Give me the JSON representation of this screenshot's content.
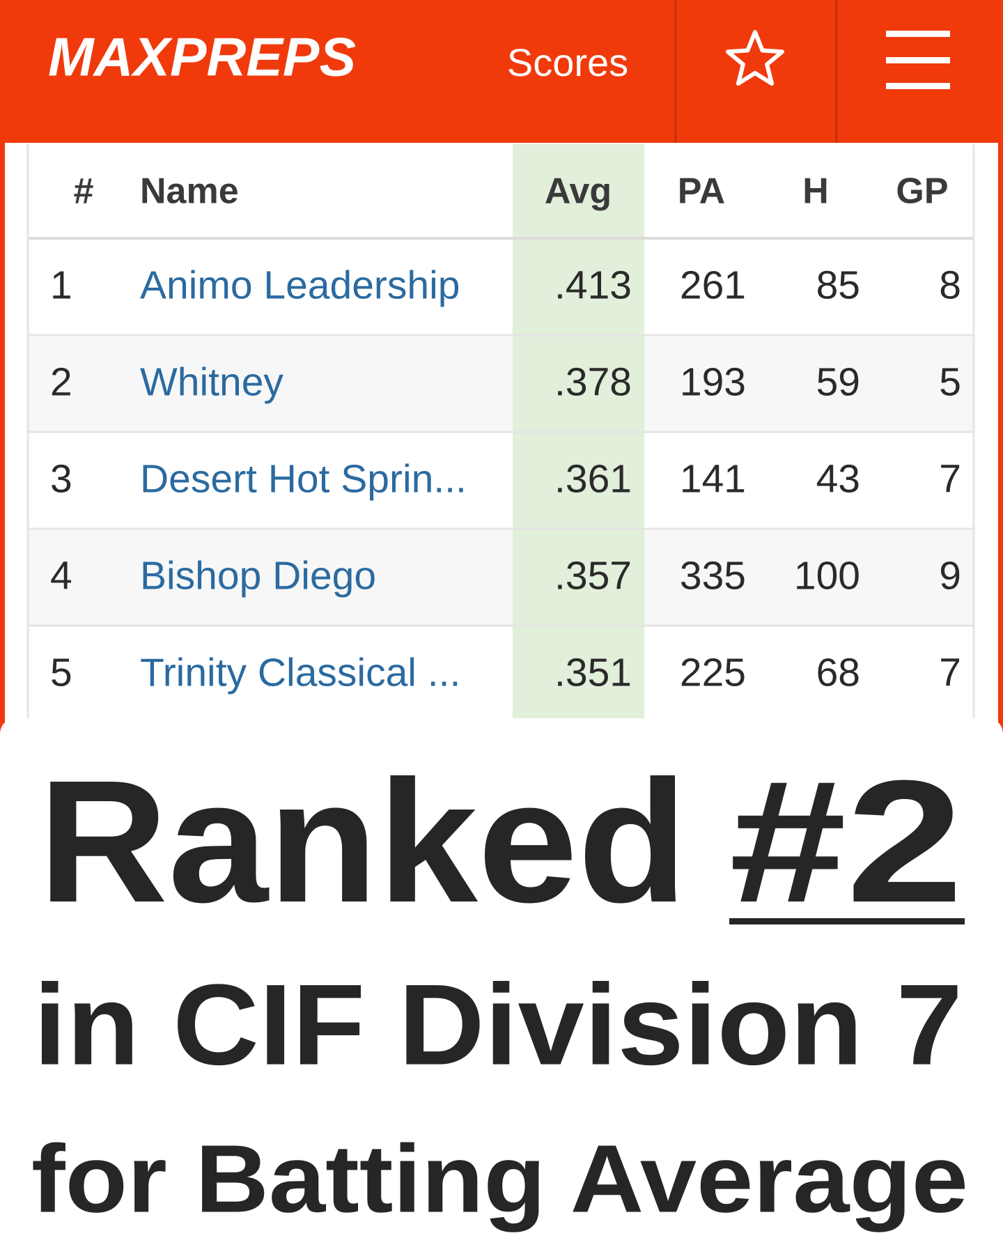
{
  "header": {
    "logo": "MAXPREPS",
    "nav": "Scores"
  },
  "table": {
    "columns": [
      "#",
      "Name",
      "Avg",
      "PA",
      "H",
      "GP"
    ],
    "rows": [
      [
        "1",
        "Animo Leadership",
        ".413",
        "261",
        "85",
        "8"
      ],
      [
        "2",
        "Whitney",
        ".378",
        "193",
        "59",
        "5"
      ],
      [
        "3",
        "Desert Hot Sprin...",
        ".361",
        "141",
        "43",
        "7"
      ],
      [
        "4",
        "Bishop Diego",
        ".357",
        "335",
        "100",
        "9"
      ],
      [
        "5",
        "Trinity Classical ...",
        ".351",
        "225",
        "68",
        "7"
      ]
    ]
  },
  "caption": {
    "line1": "Ranked",
    "rank": "#2",
    "line2": "in CIF Division 7",
    "line3": "for Batting Average"
  }
}
